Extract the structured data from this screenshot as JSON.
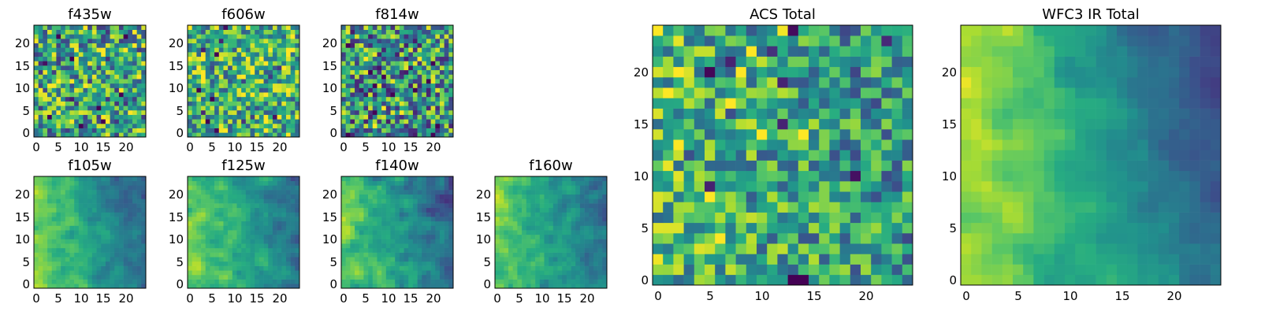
{
  "chart_data": [
    {
      "type": "heatmap",
      "title": "f435w",
      "xticks": [
        "0",
        "5",
        "10",
        "15",
        "20"
      ],
      "yticks": [
        "0",
        "5",
        "10",
        "15",
        "20"
      ],
      "xlim": [
        -0.5,
        24.5
      ],
      "ylim": [
        -0.5,
        24.5
      ],
      "colormap": "viridis",
      "grid_size": 25,
      "pattern": "noise",
      "seed": 11,
      "bias": 0.58,
      "amp": 0.42,
      "gradient": 0.0
    },
    {
      "type": "heatmap",
      "title": "f606w",
      "xticks": [
        "0",
        "5",
        "10",
        "15",
        "20"
      ],
      "yticks": [
        "0",
        "5",
        "10",
        "15",
        "20"
      ],
      "xlim": [
        -0.5,
        24.5
      ],
      "ylim": [
        -0.5,
        24.5
      ],
      "colormap": "viridis",
      "grid_size": 25,
      "pattern": "noise",
      "seed": 23,
      "bias": 0.65,
      "amp": 0.38,
      "gradient": 0.0
    },
    {
      "type": "heatmap",
      "title": "f814w",
      "xticks": [
        "0",
        "5",
        "10",
        "15",
        "20"
      ],
      "yticks": [
        "0",
        "5",
        "10",
        "15",
        "20"
      ],
      "xlim": [
        -0.5,
        24.5
      ],
      "ylim": [
        -0.5,
        24.5
      ],
      "colormap": "viridis",
      "grid_size": 25,
      "pattern": "noise",
      "seed": 37,
      "bias": 0.52,
      "amp": 0.45,
      "gradient": 0.0
    },
    {
      "type": "heatmap",
      "title": "f105w",
      "xticks": [
        "0",
        "5",
        "10",
        "15",
        "20"
      ],
      "yticks": [
        "0",
        "5",
        "10",
        "15",
        "20"
      ],
      "xlim": [
        -0.5,
        24.5
      ],
      "ylim": [
        -0.5,
        24.5
      ],
      "colormap": "viridis",
      "grid_size": 25,
      "pattern": "gradient",
      "seed": 41,
      "bias": 0.55,
      "amp": 0.22,
      "gradient": 0.55
    },
    {
      "type": "heatmap",
      "title": "f125w",
      "xticks": [
        "0",
        "5",
        "10",
        "15",
        "20"
      ],
      "yticks": [
        "0",
        "5",
        "10",
        "15",
        "20"
      ],
      "xlim": [
        -0.5,
        24.5
      ],
      "ylim": [
        -0.5,
        24.5
      ],
      "colormap": "viridis",
      "grid_size": 25,
      "pattern": "gradient",
      "seed": 53,
      "bias": 0.58,
      "amp": 0.26,
      "gradient": 0.45
    },
    {
      "type": "heatmap",
      "title": "f140w",
      "xticks": [
        "0",
        "5",
        "10",
        "15",
        "20"
      ],
      "yticks": [
        "0",
        "5",
        "10",
        "15",
        "20"
      ],
      "xlim": [
        -0.5,
        24.5
      ],
      "ylim": [
        -0.5,
        24.5
      ],
      "colormap": "viridis",
      "grid_size": 25,
      "pattern": "gradient",
      "seed": 67,
      "bias": 0.55,
      "amp": 0.25,
      "gradient": 0.55
    },
    {
      "type": "heatmap",
      "title": "f160w",
      "xticks": [
        "0",
        "5",
        "10",
        "15",
        "20"
      ],
      "yticks": [
        "0",
        "5",
        "10",
        "15",
        "20"
      ],
      "xlim": [
        -0.5,
        24.5
      ],
      "ylim": [
        -0.5,
        24.5
      ],
      "colormap": "viridis",
      "grid_size": 25,
      "pattern": "gradient",
      "seed": 79,
      "bias": 0.55,
      "amp": 0.26,
      "gradient": 0.5
    },
    {
      "type": "heatmap",
      "title": "ACS Total",
      "xticks": [
        "0",
        "5",
        "10",
        "15",
        "20"
      ],
      "yticks": [
        "0",
        "5",
        "10",
        "15",
        "20"
      ],
      "xlim": [
        -0.5,
        24.5
      ],
      "ylim": [
        -0.5,
        24.5
      ],
      "colormap": "viridis",
      "grid_size": 25,
      "pattern": "noise",
      "seed": 97,
      "bias": 0.58,
      "amp": 0.32,
      "gradient": 0.18
    },
    {
      "type": "heatmap",
      "title": "WFC3 IR Total",
      "xticks": [
        "0",
        "5",
        "10",
        "15",
        "20"
      ],
      "yticks": [
        "0",
        "5",
        "10",
        "15",
        "20"
      ],
      "xlim": [
        -0.5,
        24.5
      ],
      "ylim": [
        -0.5,
        24.5
      ],
      "colormap": "viridis",
      "grid_size": 25,
      "pattern": "gradient",
      "seed": 113,
      "bias": 0.55,
      "amp": 0.14,
      "gradient": 0.75
    }
  ]
}
